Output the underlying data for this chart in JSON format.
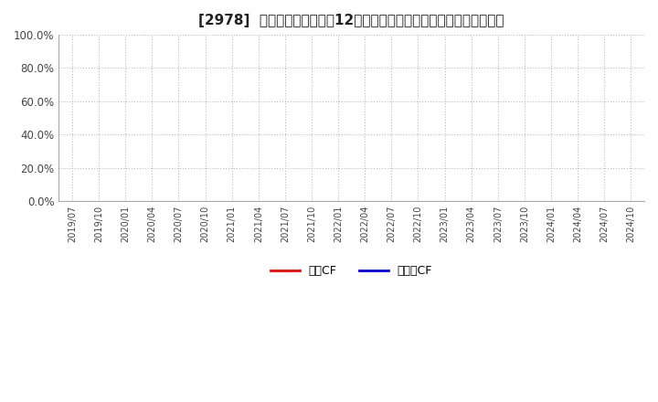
{
  "title": "[2978]  キャッシュフローの12か月移動合計の対前年同期増減率の推移",
  "title_fontsize": 11,
  "ylim": [
    0.0,
    1.0
  ],
  "yticks": [
    0.0,
    0.2,
    0.4,
    0.6,
    0.8,
    1.0
  ],
  "ytick_labels": [
    "0.0%",
    "20.0%",
    "40.0%",
    "60.0%",
    "80.0%",
    "100.0%"
  ],
  "x_tick_labels": [
    "2019/07",
    "2019/10",
    "2020/01",
    "2020/04",
    "2020/07",
    "2020/10",
    "2021/01",
    "2021/04",
    "2021/07",
    "2021/10",
    "2022/01",
    "2022/04",
    "2022/07",
    "2022/10",
    "2023/01",
    "2023/04",
    "2023/07",
    "2023/10",
    "2024/01",
    "2024/04",
    "2024/07",
    "2024/10"
  ],
  "legend_labels": [
    "営業CF",
    "フリーCF"
  ],
  "legend_colors": [
    "#ff0000",
    "#0000ff"
  ],
  "grid_color": "#bbbbbb",
  "background_color": "#ffffff",
  "plot_bg_color": "#ffffff"
}
